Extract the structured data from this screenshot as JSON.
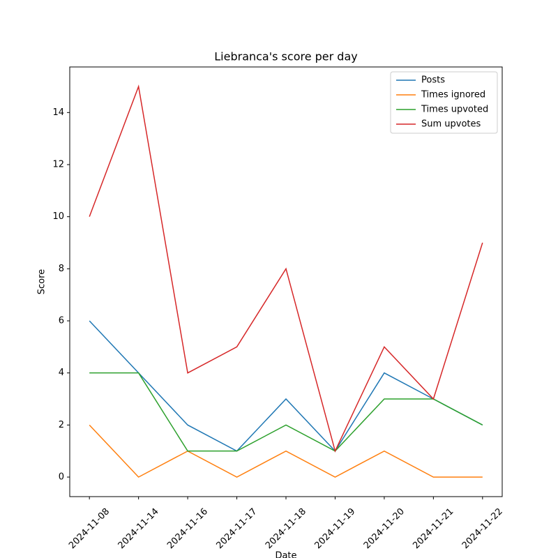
{
  "chart_data": {
    "type": "line",
    "title": "Liebranca's score per day",
    "xlabel": "Date",
    "ylabel": "Score",
    "categories": [
      "2024-11-08",
      "2024-11-14",
      "2024-11-16",
      "2024-11-17",
      "2024-11-18",
      "2024-11-19",
      "2024-11-20",
      "2024-11-21",
      "2024-11-22"
    ],
    "series": [
      {
        "name": "Posts",
        "color": "#1f77b4",
        "values": [
          6,
          4,
          2,
          1,
          3,
          1,
          4,
          3,
          2
        ]
      },
      {
        "name": "Times ignored",
        "color": "#ff7f0e",
        "values": [
          2,
          0,
          1,
          0,
          1,
          0,
          1,
          0,
          0
        ]
      },
      {
        "name": "Times upvoted",
        "color": "#2ca02c",
        "values": [
          4,
          4,
          1,
          1,
          2,
          1,
          3,
          3,
          2
        ]
      },
      {
        "name": "Sum upvotes",
        "color": "#d62728",
        "values": [
          10,
          15,
          4,
          5,
          8,
          1,
          5,
          3,
          9
        ]
      }
    ],
    "ylim": [
      -0.75,
      15.75
    ],
    "yticks": [
      0,
      2,
      4,
      6,
      8,
      10,
      12,
      14
    ],
    "legend": "upper right"
  }
}
